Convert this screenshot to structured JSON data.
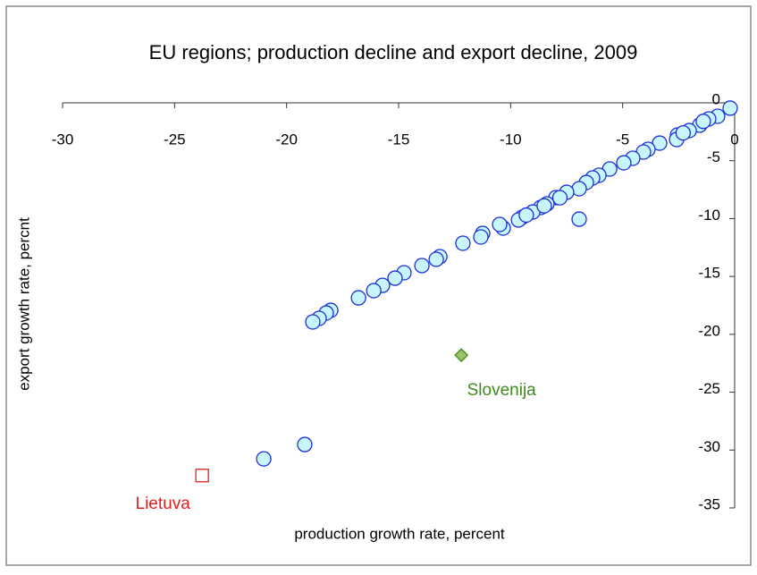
{
  "chart_data": {
    "type": "scatter",
    "title": "EU regions; production decline and export decline, 2009",
    "x_label": "production growth rate, percent",
    "y_label": "export growth rate, percnt",
    "xlim": [
      -30,
      0
    ],
    "xticks": [
      -30,
      -25,
      -20,
      -15,
      -10,
      -5,
      0
    ],
    "ylim": [
      -35,
      0
    ],
    "yticks": [
      -35,
      -30,
      -25,
      -20,
      -15,
      -10,
      -5,
      0
    ],
    "series": [
      {
        "color": "#1f2fd8",
        "fill": "#c8f6ff",
        "marker": "circle",
        "x": [
          -0.2,
          -0.76,
          -1.16,
          -1.56,
          -2.03,
          -2.55,
          -2.59,
          -3.35,
          -3.87,
          -4.07,
          -4.55,
          -4.95,
          -5.58,
          -6.06,
          -6.34,
          -6.62,
          -6.94,
          -6.94,
          -7.5,
          -7.98,
          -8.38,
          -8.66,
          -9.01,
          -9.49,
          -9.65,
          -10.33,
          -10.49,
          -11.25,
          -11.33,
          -12.13,
          -13.16,
          -13.32,
          -13.96,
          -14.76,
          -15.16,
          -15.72,
          -16.11,
          -16.79,
          -18.03,
          -18.23,
          -18.55,
          -18.83,
          -19.19,
          -21.02,
          -2.3,
          -1.4,
          -8.5,
          -7.8,
          -9.3
        ],
        "values": [
          -0.46,
          -1.16,
          -1.39,
          -1.93,
          -2.4,
          -2.78,
          -3.17,
          -3.48,
          -4.02,
          -4.25,
          -4.79,
          -5.18,
          -5.72,
          -6.26,
          -6.49,
          -6.88,
          -7.42,
          -10.05,
          -7.73,
          -8.19,
          -8.73,
          -9.04,
          -9.43,
          -9.89,
          -10.12,
          -10.82,
          -10.51,
          -11.28,
          -11.59,
          -12.13,
          -13.29,
          -13.52,
          -14.06,
          -14.68,
          -15.15,
          -15.77,
          -16.23,
          -16.85,
          -17.93,
          -18.16,
          -18.62,
          -18.93,
          -29.52,
          -30.76,
          -2.6,
          -1.6,
          -8.9,
          -8.2,
          -9.7
        ]
      },
      {
        "name": "Slovenija",
        "color": "#3f8a1e",
        "fill": "#9bc36a",
        "marker": "diamond",
        "x": [
          -12.2
        ],
        "values": [
          -21.8
        ]
      },
      {
        "name": "Lietuva",
        "color": "#e02020",
        "fill": "none",
        "marker": "square",
        "x": [
          -23.77
        ],
        "values": [
          -32.2
        ]
      }
    ]
  }
}
